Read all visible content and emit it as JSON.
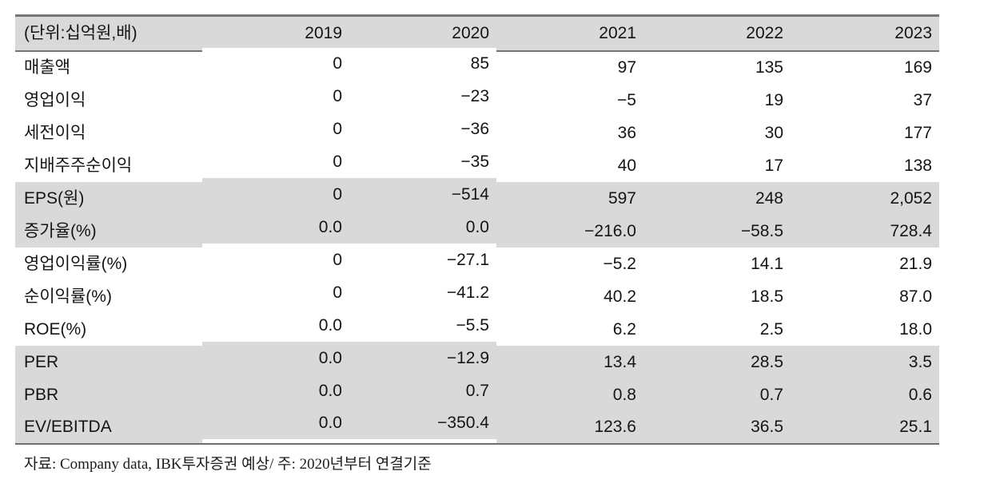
{
  "table": {
    "unit_header": "(단위:십억원,배)",
    "years": [
      "2019",
      "2020",
      "2021",
      "2022",
      "2023"
    ],
    "rows": [
      {
        "label": "매출액",
        "shaded": false,
        "values": [
          "0",
          "85",
          "97",
          "135",
          "169"
        ]
      },
      {
        "label": "영업이익",
        "shaded": false,
        "values": [
          "0",
          "−23",
          "−5",
          "19",
          "37"
        ]
      },
      {
        "label": "세전이익",
        "shaded": false,
        "values": [
          "0",
          "−36",
          "36",
          "30",
          "177"
        ]
      },
      {
        "label": "지배주주순이익",
        "shaded": false,
        "values": [
          "0",
          "−35",
          "40",
          "17",
          "138"
        ]
      },
      {
        "label": "EPS(원)",
        "shaded": true,
        "values": [
          "0",
          "−514",
          "597",
          "248",
          "2,052"
        ]
      },
      {
        "label": "증가율(%)",
        "shaded": true,
        "values": [
          "0.0",
          "0.0",
          "−216.0",
          "−58.5",
          "728.4"
        ]
      },
      {
        "label": "영업이익률(%)",
        "shaded": false,
        "values": [
          "0",
          "−27.1",
          "−5.2",
          "14.1",
          "21.9"
        ]
      },
      {
        "label": "순이익률(%)",
        "shaded": false,
        "values": [
          "0",
          "−41.2",
          "40.2",
          "18.5",
          "87.0"
        ]
      },
      {
        "label": "ROE(%)",
        "shaded": false,
        "values": [
          "0.0",
          "−5.5",
          "6.2",
          "2.5",
          "18.0"
        ]
      },
      {
        "label": "PER",
        "shaded": true,
        "values": [
          "0.0",
          "−12.9",
          "13.4",
          "28.5",
          "3.5"
        ]
      },
      {
        "label": "PBR",
        "shaded": true,
        "values": [
          "0.0",
          "0.7",
          "0.8",
          "0.7",
          "0.6"
        ]
      },
      {
        "label": "EV/EBITDA",
        "shaded": true,
        "values": [
          "0.0",
          "−350.4",
          "123.6",
          "36.5",
          "25.1"
        ]
      }
    ]
  },
  "footnote": "자료: Company data, IBK투자증권 예상/ 주: 2020년부터 연결기준",
  "colors": {
    "shaded_bg": "#d9d9d9",
    "border": "#757575",
    "text": "#151515"
  }
}
